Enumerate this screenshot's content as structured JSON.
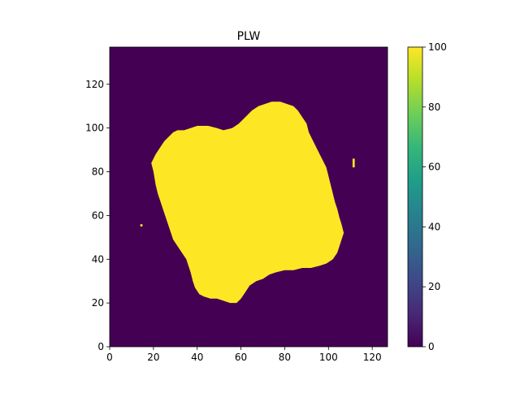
{
  "chart_data": {
    "type": "heatmap",
    "title": "PLW",
    "xlabel": "",
    "ylabel": "",
    "xlim": [
      0,
      127
    ],
    "ylim": [
      0,
      137
    ],
    "x_ticks": [
      0,
      20,
      40,
      60,
      80,
      100,
      120
    ],
    "y_ticks": [
      0,
      20,
      40,
      60,
      80,
      100,
      120
    ],
    "colormap": "viridis",
    "colorbar": {
      "min": 0,
      "max": 100,
      "ticks": [
        0,
        20,
        40,
        60,
        80,
        100
      ]
    },
    "background_value": 0,
    "region_value": 100,
    "region_outline": [
      [
        20,
        80
      ],
      [
        19,
        84
      ],
      [
        21,
        88
      ],
      [
        23,
        91
      ],
      [
        25,
        94
      ],
      [
        27,
        96
      ],
      [
        29,
        98
      ],
      [
        31,
        99
      ],
      [
        34,
        99
      ],
      [
        37,
        100
      ],
      [
        40,
        101
      ],
      [
        45,
        101
      ],
      [
        49,
        100
      ],
      [
        52,
        99
      ],
      [
        56,
        100
      ],
      [
        59,
        102
      ],
      [
        61,
        104
      ],
      [
        63,
        106
      ],
      [
        65,
        108
      ],
      [
        68,
        110
      ],
      [
        71,
        111
      ],
      [
        74,
        112
      ],
      [
        78,
        112
      ],
      [
        81,
        111
      ],
      [
        84,
        110
      ],
      [
        86,
        108
      ],
      [
        88,
        105
      ],
      [
        90,
        102
      ],
      [
        91,
        98
      ],
      [
        93,
        94
      ],
      [
        95,
        90
      ],
      [
        97,
        86
      ],
      [
        99,
        82
      ],
      [
        100,
        78
      ],
      [
        101,
        74
      ],
      [
        102,
        70
      ],
      [
        103,
        66
      ],
      [
        104,
        63
      ],
      [
        105,
        59
      ],
      [
        106,
        56
      ],
      [
        107,
        52
      ],
      [
        106,
        49
      ],
      [
        105,
        46
      ],
      [
        104,
        43
      ],
      [
        102,
        40
      ],
      [
        99,
        38
      ],
      [
        96,
        37
      ],
      [
        92,
        36
      ],
      [
        88,
        36
      ],
      [
        84,
        35
      ],
      [
        80,
        35
      ],
      [
        76,
        34
      ],
      [
        73,
        33
      ],
      [
        70,
        31
      ],
      [
        67,
        30
      ],
      [
        64,
        28
      ],
      [
        62,
        25
      ],
      [
        60,
        22
      ],
      [
        58,
        20
      ],
      [
        55,
        20
      ],
      [
        52,
        21
      ],
      [
        49,
        22
      ],
      [
        46,
        22
      ],
      [
        43,
        23
      ],
      [
        41,
        24
      ],
      [
        39,
        27
      ],
      [
        38,
        30
      ],
      [
        37,
        34
      ],
      [
        36,
        37
      ],
      [
        35,
        40
      ],
      [
        33,
        43
      ],
      [
        31,
        46
      ],
      [
        29,
        49
      ],
      [
        28,
        52
      ],
      [
        27,
        55
      ],
      [
        26,
        58
      ],
      [
        25,
        61
      ],
      [
        24,
        64
      ],
      [
        23,
        67
      ],
      [
        22,
        70
      ],
      [
        21,
        74
      ]
    ],
    "extra_pixels": [
      {
        "x": 14,
        "y": 55,
        "w": 1,
        "h": 1
      },
      {
        "x": 111,
        "y": 82,
        "w": 1,
        "h": 4
      }
    ]
  },
  "colors": {
    "low": "#440154",
    "high": "#fde725",
    "viridis_stops": [
      "#440154",
      "#482878",
      "#3e4989",
      "#31688e",
      "#26828e",
      "#1f9e89",
      "#35b779",
      "#6ece58",
      "#b5de2b",
      "#fde725"
    ]
  }
}
